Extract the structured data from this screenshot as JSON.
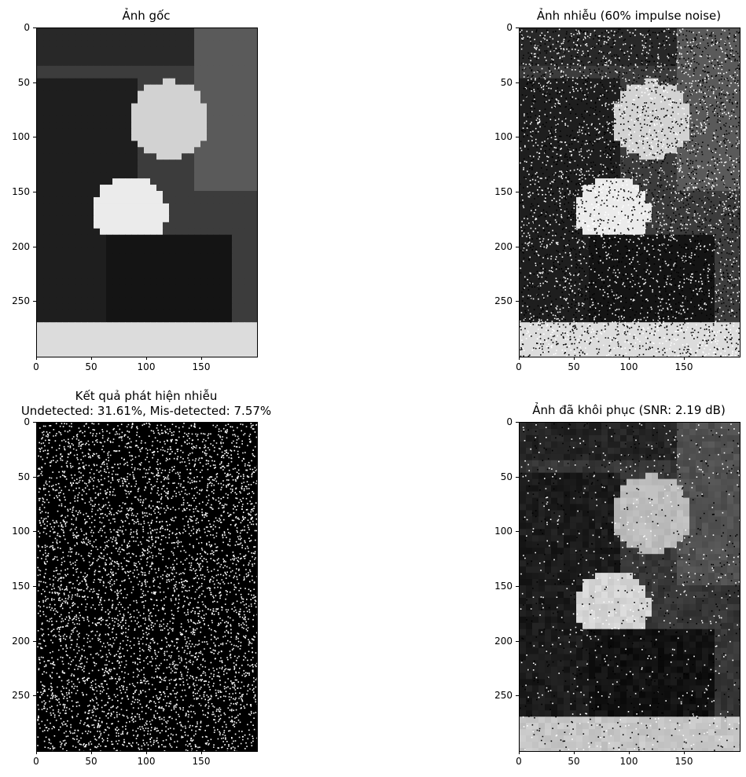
{
  "panels": [
    {
      "id": "original",
      "title": "Ảnh gốc",
      "subtitle": "",
      "kind": "original"
    },
    {
      "id": "noisy",
      "title": "Ảnh nhiễu (60% impulse noise)",
      "subtitle": "",
      "kind": "noisy"
    },
    {
      "id": "detection",
      "title": "Kết quả phát hiện nhiễu",
      "subtitle": "Undetected: 31.61%, Mis-detected: 7.57%",
      "kind": "detection"
    },
    {
      "id": "restored",
      "title": "Ảnh đã khôi phục (SNR: 2.19 dB)",
      "subtitle": "",
      "kind": "restored"
    }
  ],
  "axes": {
    "x_ticks": [
      "0",
      "50",
      "100",
      "150"
    ],
    "x_values": [
      0,
      50,
      100,
      150
    ],
    "x_range": [
      0,
      200
    ],
    "y_ticks": [
      "0",
      "50",
      "100",
      "150",
      "200",
      "250"
    ],
    "y_values": [
      0,
      50,
      100,
      150,
      200,
      250
    ],
    "y_range": [
      0,
      300
    ]
  }
}
